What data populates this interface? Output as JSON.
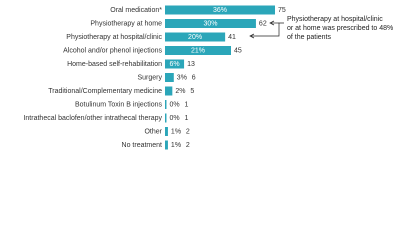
{
  "chart_data": {
    "type": "bar",
    "orientation": "horizontal",
    "categories": [
      "Oral medication*",
      "Physiotherapy at home",
      "Physiotherapy at hospital/clinic",
      "Alcohol and/or phenol injections",
      "Home-based self-rehabilitation",
      "Surgery",
      "Traditional/Complementary medicine",
      "Botulinum Toxin B injections",
      "Intrathecal baclofen/other intrathecal therapy",
      "Other",
      "No treatment"
    ],
    "values": [
      75,
      62,
      41,
      45,
      13,
      6,
      5,
      1,
      1,
      2,
      2
    ],
    "percent_labels": [
      "36%",
      "30%",
      "20%",
      "21%",
      "6%",
      "3%",
      "2%",
      "0%",
      "0%",
      "1%",
      "1%"
    ],
    "color": "#2ba6b9",
    "annotation": [
      "Physiotherapy at hospital/clinic",
      "or at  home was prescribed to 48%",
      "of the patients"
    ]
  }
}
